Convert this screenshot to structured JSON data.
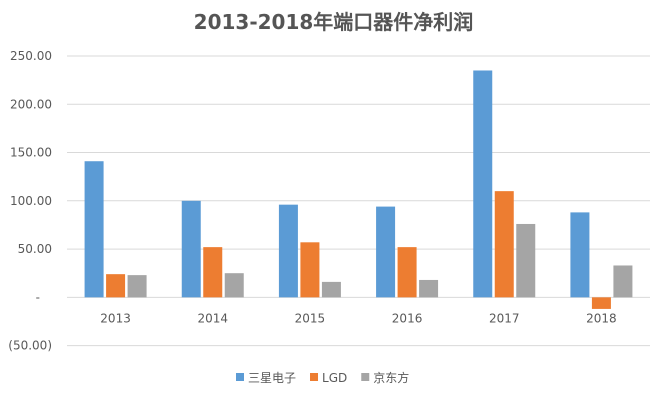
{
  "chart_data": {
    "type": "bar",
    "title": "2013-2018年端口器件净利润",
    "xlabel": "",
    "ylabel": "",
    "categories": [
      "2013",
      "2014",
      "2015",
      "2016",
      "2017",
      "2018"
    ],
    "ylim": [
      -50,
      250
    ],
    "yticks": [
      250,
      200,
      150,
      100,
      50,
      0,
      -50
    ],
    "ytick_labels": [
      "250.00",
      "200.00",
      "150.00",
      "100.00",
      "50.00",
      "-",
      "(50.00)"
    ],
    "grid": true,
    "legend": "bottom",
    "series": [
      {
        "name": "三星电子",
        "color": "#5b9bd5",
        "values": [
          141,
          100,
          96,
          94,
          235,
          88
        ]
      },
      {
        "name": "LGD",
        "color": "#ed7d31",
        "values": [
          24,
          52,
          57,
          52,
          110,
          -12
        ]
      },
      {
        "name": "京东方",
        "color": "#a5a5a5",
        "values": [
          23,
          25,
          16,
          18,
          76,
          33
        ]
      }
    ]
  }
}
